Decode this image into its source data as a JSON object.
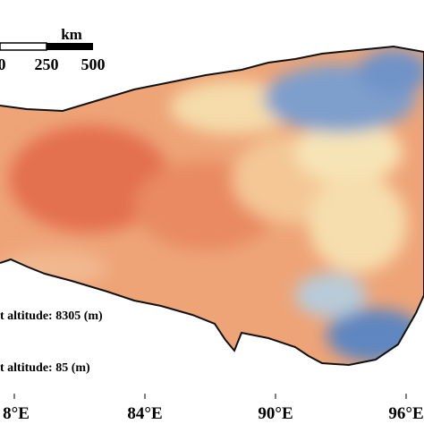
{
  "scale_bar": {
    "unit": "km",
    "labels": [
      "0",
      "250",
      "500"
    ]
  },
  "legend": {
    "highest": "t altitude: 8305 (m)",
    "lowest": "t altitude: 85 (m)"
  },
  "longitude_labels": [
    "8°E",
    "84°E",
    "90°E",
    "96°E"
  ]
}
